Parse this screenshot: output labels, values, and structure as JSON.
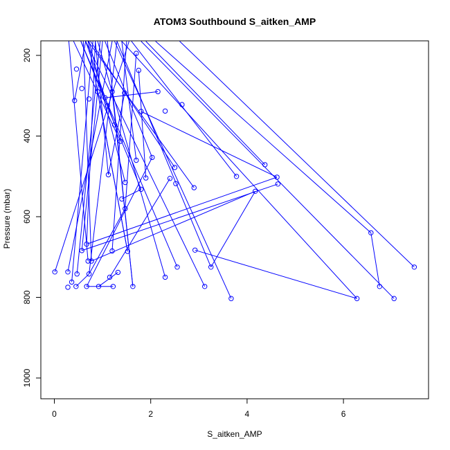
{
  "chart_data": {
    "type": "line",
    "title": "ATOM3 Southbound S_aitken_AMP",
    "xlabel": "S_aitken_AMP",
    "ylabel": "Pressure (mbar)",
    "xlim": [
      0,
      7.5
    ],
    "ylim": [
      1050,
      165
    ],
    "y_reversed": true,
    "x_ticks": [
      0,
      2,
      4,
      6
    ],
    "x_tick_labels": [
      "0",
      "2",
      "4",
      "6"
    ],
    "y_ticks": [
      200,
      400,
      600,
      800,
      1000
    ],
    "y_tick_labels": [
      "200",
      "400",
      "600",
      "800",
      "1000"
    ],
    "grid": false,
    "series_color": "#0000ff",
    "series": [
      {
        "marker": "open-circle",
        "points": [
          [
            0.01,
            737
          ],
          [
            0.28,
            775
          ],
          [
            0.28,
            737
          ],
          [
            0.36,
            762
          ],
          [
            0.42,
            312
          ],
          [
            0.45,
            773
          ],
          [
            0.47,
            742
          ],
          [
            0.46,
            234
          ],
          [
            0.57,
            282
          ],
          [
            0.57,
            684
          ],
          [
            0.67,
            773
          ],
          [
            0.67,
            668
          ],
          [
            0.7,
            710
          ],
          [
            0.72,
            742
          ],
          [
            0.72,
            308
          ],
          [
            0.77,
            710
          ],
          [
            0.9,
            290
          ],
          [
            0.92,
            773
          ],
          [
            1.05,
            305
          ],
          [
            1.1,
            325
          ],
          [
            1.12,
            496
          ],
          [
            1.15,
            750
          ],
          [
            1.2,
            290
          ],
          [
            1.2,
            685
          ],
          [
            1.22,
            773
          ],
          [
            1.25,
            372
          ],
          [
            1.32,
            738
          ],
          [
            1.37,
            413
          ],
          [
            1.4,
            556
          ],
          [
            1.46,
            293
          ],
          [
            1.47,
            515
          ],
          [
            1.47,
            580
          ],
          [
            1.52,
            686
          ],
          [
            1.63,
            773
          ],
          [
            1.7,
            195
          ],
          [
            1.7,
            460
          ],
          [
            1.75,
            237
          ],
          [
            1.8,
            339
          ],
          [
            1.8,
            532
          ],
          [
            1.9,
            504
          ],
          [
            2.03,
            453
          ],
          [
            2.15,
            290
          ],
          [
            2.3,
            750
          ],
          [
            2.3,
            338
          ],
          [
            2.4,
            505
          ],
          [
            2.5,
            478
          ],
          [
            2.52,
            518
          ],
          [
            2.55,
            725
          ],
          [
            2.65,
            322
          ],
          [
            2.9,
            528
          ],
          [
            2.92,
            683
          ],
          [
            3.12,
            773
          ],
          [
            3.25,
            725
          ],
          [
            3.67,
            803
          ],
          [
            3.78,
            500
          ],
          [
            4.17,
            537
          ],
          [
            4.37,
            471
          ],
          [
            4.62,
            502
          ],
          [
            4.64,
            519
          ],
          [
            6.28,
            803
          ],
          [
            6.57,
            640
          ],
          [
            6.75,
            773
          ],
          [
            7.05,
            803
          ],
          [
            7.47,
            725
          ]
        ],
        "segments": [
          [
            [
              0.01,
              737
            ],
            [
              1.55,
              165
            ]
          ],
          [
            [
              0.28,
              737
            ],
            [
              1.2,
              165
            ]
          ],
          [
            [
              0.36,
              762
            ],
            [
              0.8,
              165
            ]
          ],
          [
            [
              0.42,
              312
            ],
            [
              0.65,
              165
            ]
          ],
          [
            [
              0.47,
              742
            ],
            [
              0.95,
              165
            ]
          ],
          [
            [
              0.57,
              684
            ],
            [
              1.0,
              165
            ]
          ],
          [
            [
              0.67,
              668
            ],
            [
              0.85,
              165
            ]
          ],
          [
            [
              0.7,
              710
            ],
            [
              0.3,
              165
            ]
          ],
          [
            [
              0.72,
              742
            ],
            [
              1.3,
              165
            ]
          ],
          [
            [
              0.77,
              710
            ],
            [
              0.6,
              165
            ]
          ],
          [
            [
              1.12,
              496
            ],
            [
              0.85,
              165
            ]
          ],
          [
            [
              1.2,
              685
            ],
            [
              1.5,
              165
            ]
          ],
          [
            [
              1.25,
              372
            ],
            [
              0.65,
              165
            ]
          ],
          [
            [
              1.37,
              413
            ],
            [
              0.4,
              165
            ]
          ],
          [
            [
              1.47,
              515
            ],
            [
              0.72,
              165
            ]
          ],
          [
            [
              1.52,
              686
            ],
            [
              0.7,
              165
            ]
          ],
          [
            [
              1.63,
              773
            ],
            [
              1.1,
              165
            ]
          ],
          [
            [
              1.7,
              460
            ],
            [
              1.4,
              165
            ]
          ],
          [
            [
              1.8,
              532
            ],
            [
              0.55,
              165
            ]
          ],
          [
            [
              2.03,
              453
            ],
            [
              1.05,
              165
            ]
          ],
          [
            [
              2.3,
              750
            ],
            [
              0.9,
              165
            ]
          ],
          [
            [
              2.5,
              478
            ],
            [
              0.75,
              165
            ]
          ],
          [
            [
              2.55,
              725
            ],
            [
              0.55,
              165
            ]
          ],
          [
            [
              2.9,
              528
            ],
            [
              0.7,
              165
            ]
          ],
          [
            [
              3.12,
              773
            ],
            [
              0.65,
              165
            ]
          ],
          [
            [
              3.25,
              725
            ],
            [
              1.3,
              165
            ]
          ],
          [
            [
              3.67,
              803
            ],
            [
              1.25,
              165
            ]
          ],
          [
            [
              3.78,
              500
            ],
            [
              1.6,
              165
            ]
          ],
          [
            [
              4.37,
              471
            ],
            [
              1.9,
              165
            ]
          ],
          [
            [
              6.28,
              803
            ],
            [
              1.4,
              165
            ]
          ],
          [
            [
              6.57,
              640
            ],
            [
              2.1,
              165
            ]
          ],
          [
            [
              7.05,
              803
            ],
            [
              1.8,
              165
            ]
          ],
          [
            [
              7.47,
              725
            ],
            [
              2.6,
              165
            ]
          ],
          [
            [
              6.75,
              773
            ],
            [
              6.57,
              640
            ]
          ],
          [
            [
              4.62,
              502
            ],
            [
              0.67,
              668
            ]
          ],
          [
            [
              4.64,
              519
            ],
            [
              0.57,
              684
            ]
          ],
          [
            [
              4.17,
              537
            ],
            [
              0.77,
              710
            ]
          ],
          [
            [
              2.92,
              683
            ],
            [
              6.28,
              803
            ]
          ],
          [
            [
              3.25,
              725
            ],
            [
              4.17,
              537
            ]
          ],
          [
            [
              1.8,
              339
            ],
            [
              4.62,
              502
            ]
          ],
          [
            [
              2.03,
              453
            ],
            [
              0.67,
              773
            ]
          ],
          [
            [
              1.4,
              556
            ],
            [
              1.8,
              532
            ]
          ],
          [
            [
              0.92,
              773
            ],
            [
              1.32,
              738
            ]
          ],
          [
            [
              0.45,
              773
            ],
            [
              0.72,
              742
            ]
          ],
          [
            [
              0.67,
              773
            ],
            [
              1.22,
              773
            ]
          ],
          [
            [
              2.15,
              290
            ],
            [
              1.05,
              305
            ]
          ],
          [
            [
              1.46,
              293
            ],
            [
              1.12,
              496
            ]
          ],
          [
            [
              1.7,
              195
            ],
            [
              1.47,
              580
            ]
          ],
          [
            [
              1.75,
              237
            ],
            [
              1.9,
              504
            ]
          ],
          [
            [
              0.9,
              290
            ],
            [
              1.52,
              686
            ]
          ],
          [
            [
              1.2,
              290
            ],
            [
              1.63,
              773
            ]
          ],
          [
            [
              2.4,
              505
            ],
            [
              1.15,
              750
            ]
          ],
          [
            [
              1.47,
              580
            ],
            [
              0.72,
              742
            ]
          ]
        ]
      }
    ]
  }
}
